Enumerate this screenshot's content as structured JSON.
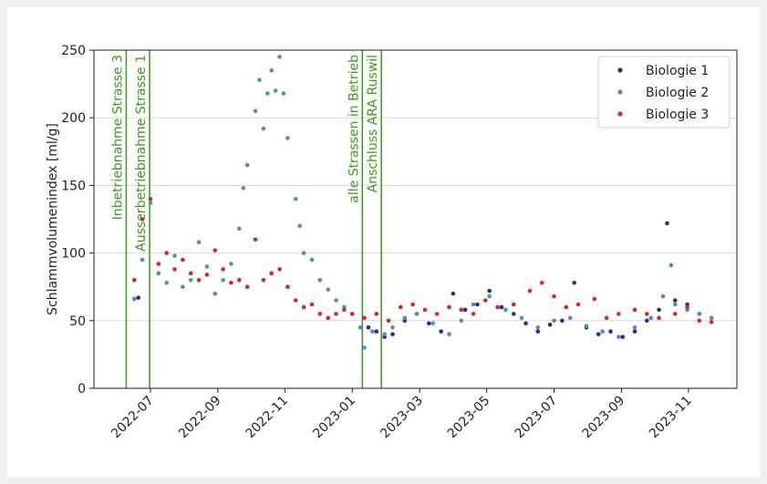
{
  "chart_data": {
    "type": "scatter",
    "y_label": "Schlammvolumenindex [ml/g]",
    "xlim": [
      2022.36,
      2023.953
    ],
    "xticks": [
      {
        "value": 2022.5,
        "label": "2022-07"
      },
      {
        "value": 2022.667,
        "label": "2022-09"
      },
      {
        "value": 2022.833,
        "label": "2022-11"
      },
      {
        "value": 2023.0,
        "label": "2023-01"
      },
      {
        "value": 2023.167,
        "label": "2023-03"
      },
      {
        "value": 2023.333,
        "label": "2023-05"
      },
      {
        "value": 2023.5,
        "label": "2023-07"
      },
      {
        "value": 2023.667,
        "label": "2023-09"
      },
      {
        "value": 2023.833,
        "label": "2023-11"
      }
    ],
    "ylim": [
      0,
      250
    ],
    "yticks": [
      0,
      50,
      100,
      150,
      200,
      250
    ],
    "grid": true,
    "legend": "upper right",
    "annotations": [
      {
        "x": 2022.44,
        "text": "Inbetriebnahme Strasse 3"
      },
      {
        "x": 2022.498,
        "text": "Ausserbetriebnahme Strasse 1"
      },
      {
        "x": 2023.025,
        "text": "alle Strassen in Betrieb"
      },
      {
        "x": 2023.072,
        "text": "Anschluss ARA Ruswil"
      }
    ],
    "annotation_color": "#3a9a1a",
    "series": [
      {
        "name": "Biologie 1",
        "color": "#2e2a86",
        "x": [
          2022.46,
          2022.47,
          2023.04,
          2023.06,
          2023.08,
          2023.1,
          2023.13,
          2023.16,
          2023.19,
          2023.22,
          2023.25,
          2023.28,
          2023.31,
          2023.34,
          2023.37,
          2023.4,
          2023.43,
          2023.46,
          2023.49,
          2023.52,
          2023.55,
          2023.58,
          2023.61,
          2023.64,
          2023.67,
          2023.7,
          2023.73,
          2023.76,
          2023.78,
          2023.8,
          2023.83,
          2023.86,
          2023.89
        ],
        "values": [
          66,
          67,
          45,
          42,
          38,
          40,
          50,
          55,
          48,
          42,
          70,
          58,
          62,
          72,
          60,
          55,
          48,
          42,
          47,
          50,
          78,
          45,
          40,
          42,
          38,
          42,
          50,
          58,
          122,
          65,
          62,
          55,
          52
        ]
      },
      {
        "name": "Biologie 2",
        "color": "#4a90c8",
        "x": [
          2022.46,
          2022.48,
          2022.5,
          2022.52,
          2022.54,
          2022.56,
          2022.58,
          2022.6,
          2022.62,
          2022.64,
          2022.66,
          2022.68,
          2022.7,
          2022.72,
          2022.73,
          2022.74,
          2022.76,
          2022.77,
          2022.78,
          2022.79,
          2022.8,
          2022.81,
          2022.82,
          2022.83,
          2022.84,
          2022.86,
          2022.87,
          2022.88,
          2022.9,
          2022.92,
          2022.94,
          2022.96,
          2022.98,
          2023.0,
          2023.02,
          2023.03,
          2023.05,
          2023.08,
          2023.1,
          2023.13,
          2023.16,
          2023.2,
          2023.24,
          2023.27,
          2023.3,
          2023.34,
          2023.38,
          2023.42,
          2023.46,
          2023.5,
          2023.54,
          2023.58,
          2023.62,
          2023.66,
          2023.7,
          2023.74,
          2023.77,
          2023.79,
          2023.8,
          2023.83,
          2023.86,
          2023.89
        ],
        "values": [
          66,
          95,
          137,
          85,
          78,
          98,
          75,
          80,
          108,
          90,
          70,
          80,
          92,
          118,
          148,
          165,
          205,
          228,
          192,
          218,
          235,
          220,
          245,
          218,
          185,
          140,
          120,
          100,
          95,
          80,
          73,
          65,
          60,
          55,
          45,
          30,
          42,
          40,
          45,
          52,
          55,
          48,
          40,
          50,
          62,
          68,
          58,
          52,
          45,
          50,
          52,
          46,
          42,
          38,
          45,
          52,
          68,
          91,
          62,
          58,
          55,
          52
        ]
      },
      {
        "name": "Biologie 3",
        "color": "#d62728",
        "x": [
          2022.46,
          2022.48,
          2022.5,
          2022.52,
          2022.54,
          2022.56,
          2022.58,
          2022.6,
          2022.62,
          2022.64,
          2022.66,
          2022.68,
          2022.7,
          2022.72,
          2022.74,
          2022.76,
          2022.78,
          2022.8,
          2022.82,
          2022.84,
          2022.86,
          2022.88,
          2022.9,
          2022.92,
          2022.94,
          2022.96,
          2022.98,
          2023.0,
          2023.03,
          2023.06,
          2023.09,
          2023.12,
          2023.15,
          2023.18,
          2023.21,
          2023.24,
          2023.27,
          2023.3,
          2023.33,
          2023.36,
          2023.4,
          2023.44,
          2023.47,
          2023.5,
          2023.53,
          2023.56,
          2023.6,
          2023.63,
          2023.66,
          2023.7,
          2023.73,
          2023.76,
          2023.8,
          2023.83,
          2023.86,
          2023.89
        ],
        "values": [
          80,
          125,
          140,
          92,
          100,
          88,
          95,
          85,
          80,
          84,
          102,
          88,
          78,
          80,
          75,
          110,
          80,
          85,
          88,
          75,
          65,
          60,
          62,
          55,
          52,
          55,
          58,
          55,
          52,
          55,
          50,
          60,
          62,
          58,
          55,
          60,
          58,
          55,
          65,
          60,
          62,
          72,
          78,
          68,
          60,
          62,
          66,
          52,
          55,
          58,
          55,
          52,
          55,
          60,
          50,
          49
        ]
      }
    ]
  }
}
